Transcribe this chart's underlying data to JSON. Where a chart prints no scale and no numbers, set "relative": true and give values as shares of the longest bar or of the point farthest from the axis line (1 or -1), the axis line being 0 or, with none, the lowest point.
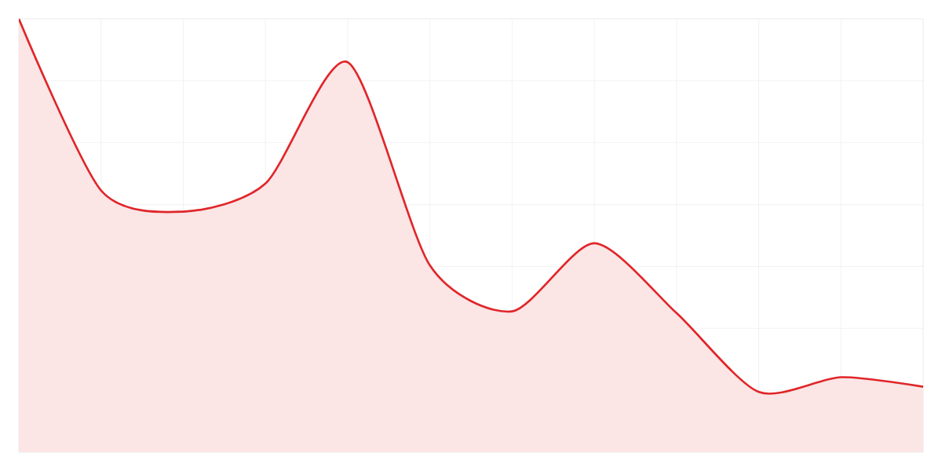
{
  "chart_data": {
    "type": "area",
    "relative": true,
    "categories": [
      null,
      null,
      null,
      null,
      null,
      null,
      null,
      null,
      null,
      null,
      null,
      null
    ],
    "series": [
      {
        "color": "#e0262a",
        "values": [
          1,
          0.604,
          0.555,
          0.62,
          0.9,
          0.431,
          0.325,
          0.482,
          0.321,
          0.139,
          0.173,
          0.151
        ]
      }
    ],
    "grid": true
  }
}
